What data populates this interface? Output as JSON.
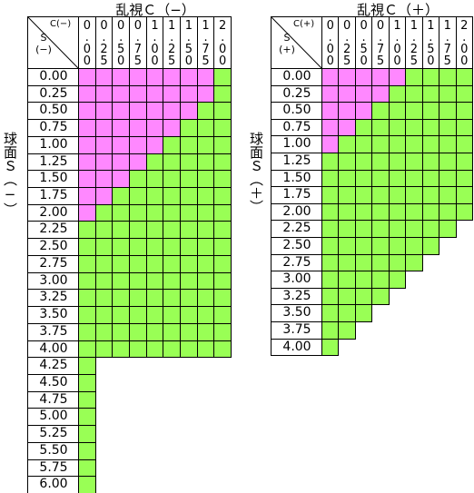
{
  "tables": [
    {
      "title": "乱視Ｃ（−）",
      "side_label": "球面Ｓ（−）",
      "corner_col": "C(−)",
      "corner_row": "S(−)",
      "columns": [
        "0.00",
        "0.25",
        "0.50",
        "0.75",
        "1.00",
        "1.25",
        "1.50",
        "1.75",
        "2.00"
      ],
      "rows": [
        {
          "label": "0.00",
          "cells": [
            "#f8f",
            "#f8f",
            "#f8f",
            "#f8f",
            "#f8f",
            "#f8f",
            "#f8f",
            "#f8f",
            "#9f5"
          ]
        },
        {
          "label": "0.25",
          "cells": [
            "#f8f",
            "#f8f",
            "#f8f",
            "#f8f",
            "#f8f",
            "#f8f",
            "#f8f",
            "#f8f",
            "#9f5"
          ]
        },
        {
          "label": "0.50",
          "cells": [
            "#f8f",
            "#f8f",
            "#f8f",
            "#f8f",
            "#f8f",
            "#f8f",
            "#f8f",
            "#9f5",
            "#9f5"
          ]
        },
        {
          "label": "0.75",
          "cells": [
            "#f8f",
            "#f8f",
            "#f8f",
            "#f8f",
            "#f8f",
            "#f8f",
            "#9f5",
            "#9f5",
            "#9f5"
          ]
        },
        {
          "label": "1.00",
          "cells": [
            "#f8f",
            "#f8f",
            "#f8f",
            "#f8f",
            "#f8f",
            "#9f5",
            "#9f5",
            "#9f5",
            "#9f5"
          ]
        },
        {
          "label": "1.25",
          "cells": [
            "#f8f",
            "#f8f",
            "#f8f",
            "#f8f",
            "#9f5",
            "#9f5",
            "#9f5",
            "#9f5",
            "#9f5"
          ]
        },
        {
          "label": "1.50",
          "cells": [
            "#f8f",
            "#f8f",
            "#f8f",
            "#9f5",
            "#9f5",
            "#9f5",
            "#9f5",
            "#9f5",
            "#9f5"
          ]
        },
        {
          "label": "1.75",
          "cells": [
            "#f8f",
            "#f8f",
            "#9f5",
            "#9f5",
            "#9f5",
            "#9f5",
            "#9f5",
            "#9f5",
            "#9f5"
          ]
        },
        {
          "label": "2.00",
          "cells": [
            "#f8f",
            "#9f5",
            "#9f5",
            "#9f5",
            "#9f5",
            "#9f5",
            "#9f5",
            "#9f5",
            "#9f5"
          ]
        },
        {
          "label": "2.25",
          "cells": [
            "#9f5",
            "#9f5",
            "#9f5",
            "#9f5",
            "#9f5",
            "#9f5",
            "#9f5",
            "#9f5",
            "#9f5"
          ]
        },
        {
          "label": "2.50",
          "cells": [
            "#9f5",
            "#9f5",
            "#9f5",
            "#9f5",
            "#9f5",
            "#9f5",
            "#9f5",
            "#9f5",
            "#9f5"
          ]
        },
        {
          "label": "2.75",
          "cells": [
            "#9f5",
            "#9f5",
            "#9f5",
            "#9f5",
            "#9f5",
            "#9f5",
            "#9f5",
            "#9f5",
            "#9f5"
          ]
        },
        {
          "label": "3.00",
          "cells": [
            "#9f5",
            "#9f5",
            "#9f5",
            "#9f5",
            "#9f5",
            "#9f5",
            "#9f5",
            "#9f5",
            "#9f5"
          ]
        },
        {
          "label": "3.25",
          "cells": [
            "#9f5",
            "#9f5",
            "#9f5",
            "#9f5",
            "#9f5",
            "#9f5",
            "#9f5",
            "#9f5",
            "#9f5"
          ]
        },
        {
          "label": "3.50",
          "cells": [
            "#9f5",
            "#9f5",
            "#9f5",
            "#9f5",
            "#9f5",
            "#9f5",
            "#9f5",
            "#9f5",
            "#9f5"
          ]
        },
        {
          "label": "3.75",
          "cells": [
            "#9f5",
            "#9f5",
            "#9f5",
            "#9f5",
            "#9f5",
            "#9f5",
            "#9f5",
            "#9f5",
            "#9f5"
          ]
        },
        {
          "label": "4.00",
          "cells": [
            "#9f5",
            "#9f5",
            "#9f5",
            "#9f5",
            "#9f5",
            "#9f5",
            "#9f5",
            "#9f5",
            "#9f5"
          ]
        },
        {
          "label": "4.25",
          "cells": [
            "#9f5"
          ]
        },
        {
          "label": "4.50",
          "cells": [
            "#9f5"
          ]
        },
        {
          "label": "4.75",
          "cells": [
            "#9f5"
          ]
        },
        {
          "label": "5.00",
          "cells": [
            "#9f5"
          ]
        },
        {
          "label": "5.25",
          "cells": [
            "#9f5"
          ]
        },
        {
          "label": "5.50",
          "cells": [
            "#9f5"
          ]
        },
        {
          "label": "5.75",
          "cells": [
            "#9f5"
          ]
        },
        {
          "label": "6.00",
          "cells": [
            "#9f5"
          ]
        }
      ]
    },
    {
      "title": "乱視Ｃ（＋）",
      "side_label": "球面Ｓ（＋）",
      "corner_col": "C(+)",
      "corner_row": "S(+)",
      "columns": [
        "0.00",
        "0.25",
        "0.50",
        "0.75",
        "1.00",
        "1.25",
        "1.50",
        "1.75",
        "2.00"
      ],
      "rows": [
        {
          "label": "0.00",
          "cells": [
            "#f8f",
            "#f8f",
            "#f8f",
            "#f8f",
            "#f8f",
            "#9f5",
            "#9f5",
            "#9f5",
            "#9f5"
          ]
        },
        {
          "label": "0.25",
          "cells": [
            "#f8f",
            "#f8f",
            "#f8f",
            "#f8f",
            "#9f5",
            "#9f5",
            "#9f5",
            "#9f5",
            "#9f5"
          ]
        },
        {
          "label": "0.50",
          "cells": [
            "#f8f",
            "#f8f",
            "#f8f",
            "#9f5",
            "#9f5",
            "#9f5",
            "#9f5",
            "#9f5",
            "#9f5"
          ]
        },
        {
          "label": "0.75",
          "cells": [
            "#f8f",
            "#f8f",
            "#9f5",
            "#9f5",
            "#9f5",
            "#9f5",
            "#9f5",
            "#9f5",
            "#9f5"
          ]
        },
        {
          "label": "1.00",
          "cells": [
            "#f8f",
            "#9f5",
            "#9f5",
            "#9f5",
            "#9f5",
            "#9f5",
            "#9f5",
            "#9f5",
            "#9f5"
          ]
        },
        {
          "label": "1.25",
          "cells": [
            "#9f5",
            "#9f5",
            "#9f5",
            "#9f5",
            "#9f5",
            "#9f5",
            "#9f5",
            "#9f5",
            "#9f5"
          ]
        },
        {
          "label": "1.50",
          "cells": [
            "#9f5",
            "#9f5",
            "#9f5",
            "#9f5",
            "#9f5",
            "#9f5",
            "#9f5",
            "#9f5",
            "#9f5"
          ]
        },
        {
          "label": "1.75",
          "cells": [
            "#9f5",
            "#9f5",
            "#9f5",
            "#9f5",
            "#9f5",
            "#9f5",
            "#9f5",
            "#9f5",
            "#9f5"
          ]
        },
        {
          "label": "2.00",
          "cells": [
            "#9f5",
            "#9f5",
            "#9f5",
            "#9f5",
            "#9f5",
            "#9f5",
            "#9f5",
            "#9f5",
            "#9f5"
          ]
        },
        {
          "label": "2.25",
          "cells": [
            "#9f5",
            "#9f5",
            "#9f5",
            "#9f5",
            "#9f5",
            "#9f5",
            "#9f5",
            "#9f5"
          ]
        },
        {
          "label": "2.50",
          "cells": [
            "#9f5",
            "#9f5",
            "#9f5",
            "#9f5",
            "#9f5",
            "#9f5",
            "#9f5"
          ]
        },
        {
          "label": "2.75",
          "cells": [
            "#9f5",
            "#9f5",
            "#9f5",
            "#9f5",
            "#9f5",
            "#9f5"
          ]
        },
        {
          "label": "3.00",
          "cells": [
            "#9f5",
            "#9f5",
            "#9f5",
            "#9f5",
            "#9f5"
          ]
        },
        {
          "label": "3.25",
          "cells": [
            "#9f5",
            "#9f5",
            "#9f5",
            "#9f5"
          ]
        },
        {
          "label": "3.50",
          "cells": [
            "#9f5",
            "#9f5",
            "#9f5"
          ]
        },
        {
          "label": "3.75",
          "cells": [
            "#9f5",
            "#9f5"
          ]
        },
        {
          "label": "4.00",
          "cells": [
            "#9f5"
          ]
        }
      ]
    }
  ]
}
